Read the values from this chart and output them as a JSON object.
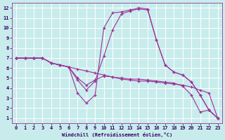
{
  "xlabel": "Windchill (Refroidissement éolien,°C)",
  "bg_color": "#c8ecec",
  "grid_color": "#ffffff",
  "line_color": "#993399",
  "xlim": [
    -0.5,
    23.5
  ],
  "ylim": [
    0.5,
    12.5
  ],
  "xticks": [
    0,
    1,
    2,
    3,
    4,
    5,
    6,
    7,
    8,
    9,
    10,
    11,
    12,
    13,
    14,
    15,
    16,
    17,
    18,
    19,
    20,
    21,
    22,
    23
  ],
  "yticks": [
    1,
    2,
    3,
    4,
    5,
    6,
    7,
    8,
    9,
    10,
    11,
    12
  ],
  "lines": [
    {
      "x": [
        0,
        1,
        2,
        3,
        4,
        5,
        6,
        7,
        8,
        9,
        10,
        11,
        12,
        13,
        14,
        15,
        16,
        17,
        18,
        19,
        20,
        21,
        22,
        23
      ],
      "y": [
        7,
        7,
        7,
        7,
        6.5,
        6.3,
        6.1,
        5.9,
        5.7,
        5.5,
        5.3,
        5.1,
        4.9,
        4.8,
        4.7,
        4.7,
        4.6,
        4.5,
        4.4,
        4.3,
        4.1,
        3.8,
        3.5,
        1.0
      ]
    },
    {
      "x": [
        0,
        1,
        2,
        3,
        4,
        5,
        6,
        7,
        8,
        9,
        10,
        11,
        12,
        13,
        14,
        15,
        16,
        17,
        18,
        19,
        20,
        21,
        22,
        23
      ],
      "y": [
        7,
        7,
        7,
        7,
        6.5,
        6.3,
        6.1,
        5.0,
        4.3,
        4.8,
        5.2,
        5.1,
        5.0,
        4.9,
        4.9,
        4.8,
        4.7,
        4.6,
        4.5,
        4.2,
        3.3,
        1.6,
        1.8,
        1.0
      ]
    },
    {
      "x": [
        0,
        1,
        2,
        3,
        4,
        5,
        6,
        7,
        8,
        9,
        10,
        11,
        12,
        13,
        14,
        15,
        16,
        17,
        18,
        19,
        20,
        21,
        22,
        23
      ],
      "y": [
        7,
        7,
        7,
        7,
        6.5,
        6.3,
        6.1,
        4.8,
        3.8,
        4.7,
        7.2,
        9.8,
        11.4,
        11.7,
        11.9,
        11.8,
        8.8,
        6.3,
        5.6,
        5.3,
        4.6,
        3.3,
        1.8,
        1.0
      ]
    },
    {
      "x": [
        0,
        1,
        2,
        3,
        4,
        5,
        6,
        7,
        8,
        9,
        10,
        11,
        12,
        13,
        14,
        15,
        16,
        17,
        18,
        19,
        20,
        21,
        22,
        23
      ],
      "y": [
        7,
        7,
        7,
        7,
        6.5,
        6.3,
        6.1,
        3.5,
        2.5,
        3.3,
        10.0,
        11.5,
        11.6,
        11.8,
        12.0,
        11.9,
        8.8,
        6.3,
        5.6,
        5.3,
        4.6,
        3.3,
        1.8,
        1.0
      ]
    }
  ]
}
